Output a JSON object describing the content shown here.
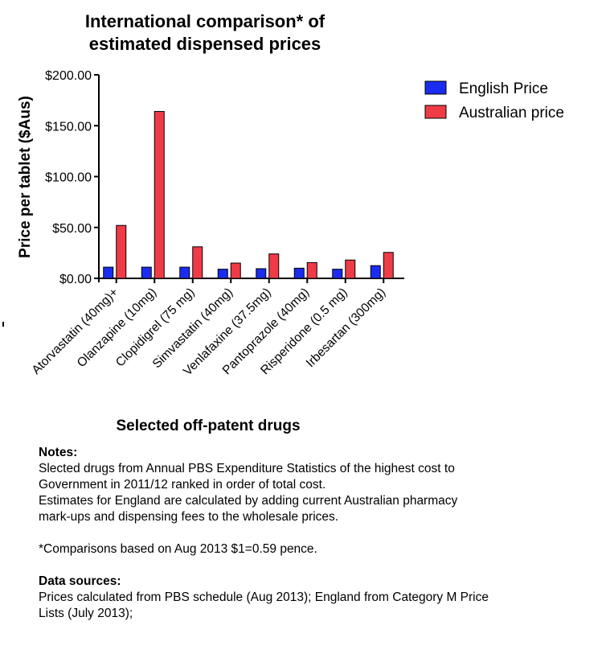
{
  "chart_data": {
    "type": "bar",
    "title_lines": [
      "International comparison* of",
      "estimated dispensed prices"
    ],
    "xlabel": "Selected off-patent drugs",
    "ylabel": "Price per tablet ($Aus)",
    "ylim": [
      0,
      200
    ],
    "yticks": [
      0,
      50,
      100,
      150,
      200
    ],
    "ytick_labels": [
      "$0.00",
      "$50.00",
      "$100.00",
      "$150.00",
      "$200.00"
    ],
    "categories": [
      "Atorvastatin (40mg)+",
      "Olanzapine (10mg)",
      "Clopidigrel (75 mg)",
      "Simvastatin (40mg)",
      "Venlafaxine (37.5mg)",
      "Pantoprazole (40mg)",
      "Risperidone (0.5 mg)",
      "Irbesartan (300mg)"
    ],
    "series": [
      {
        "name": "English Price",
        "color": "#1a2cf0",
        "values": [
          11,
          11,
          11,
          9,
          9.5,
          10,
          9,
          12.5
        ]
      },
      {
        "name": "Australian price",
        "color": "#ef3b46",
        "values": [
          52,
          164,
          31,
          15,
          24,
          15.5,
          18,
          25.5
        ]
      }
    ],
    "legend_position": "top-right",
    "grid": false
  },
  "notes": {
    "heading": "Notes:",
    "line1": "Slected drugs from Annual PBS Expenditure Statistics of the highest cost to",
    "line2": "Government in 2011/12 ranked in order of total cost.",
    "line3": "Estimates for England are calculated by adding current Australian pharmacy",
    "line4": "mark-ups and dispensing fees to the wholesale prices.",
    "comparison": "*Comparisons based on Aug 2013 $1=0.59 pence.",
    "sources_heading": "Data sources:",
    "sources_line1": "Prices calculated from PBS schedule (Aug 2013); England from Category M Price",
    "sources_line2": "Lists (July 2013);"
  }
}
